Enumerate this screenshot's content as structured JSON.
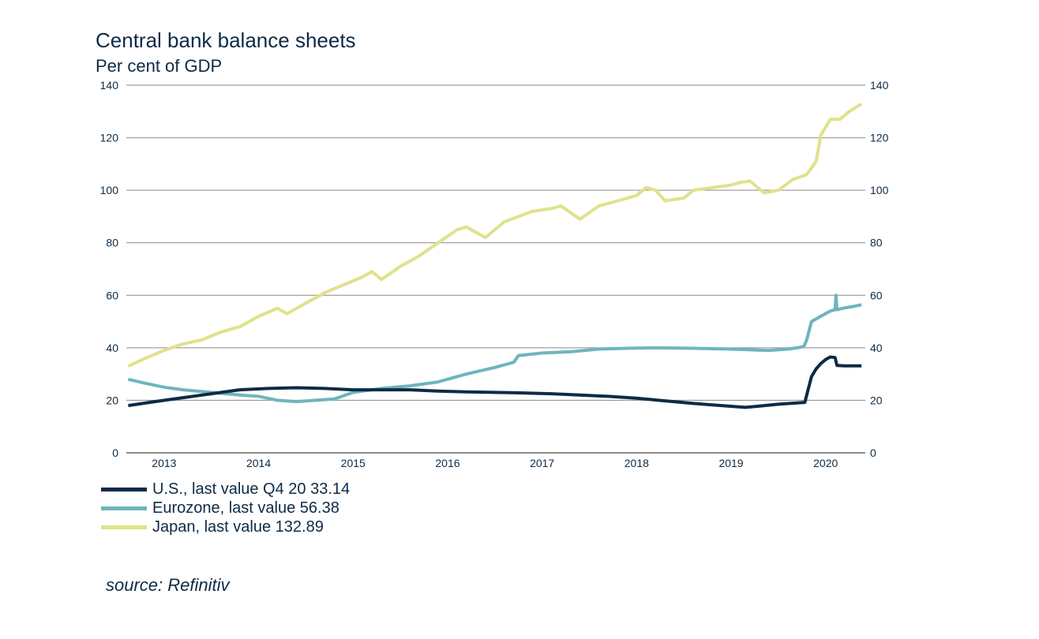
{
  "chart_data": {
    "type": "line",
    "title": "Central bank balance sheets",
    "subtitle": "Per cent of GDP",
    "ylim": [
      0,
      140
    ],
    "yticks": [
      0,
      20,
      40,
      60,
      80,
      100,
      120,
      140
    ],
    "xlim": [
      2012.6,
      2020.42
    ],
    "xticks": [
      2013,
      2014,
      2015,
      2016,
      2017,
      2018,
      2019,
      2020
    ],
    "grid": true,
    "legend_position": "bottom-left",
    "source": "source: Refinitiv",
    "series": [
      {
        "name": "U.S., last value Q4 20 33.14",
        "color": "#0d2b45",
        "x": [
          2012.62,
          2012.9,
          2013.2,
          2013.5,
          2013.8,
          2014.1,
          2014.4,
          2014.7,
          2015.0,
          2015.3,
          2015.6,
          2015.9,
          2016.2,
          2016.5,
          2016.8,
          2017.1,
          2017.4,
          2017.7,
          2018.0,
          2018.3,
          2018.6,
          2018.9,
          2019.15,
          2019.3,
          2019.5,
          2019.7,
          2019.78,
          2019.8,
          2019.85,
          2019.9,
          2019.95,
          2020.0,
          2020.05,
          2020.1,
          2020.12,
          2020.2,
          2020.3,
          2020.38
        ],
        "y": [
          18,
          19.5,
          21,
          22.5,
          24,
          24.5,
          24.8,
          24.5,
          24,
          24,
          24,
          23.5,
          23.2,
          23,
          22.8,
          22.5,
          22,
          21.5,
          20.8,
          19.8,
          18.8,
          18,
          17.3,
          17.8,
          18.5,
          19,
          19.2,
          22,
          29,
          32,
          34,
          35.5,
          36.5,
          36.3,
          33.3,
          33.1,
          33.1,
          33.14
        ]
      },
      {
        "name": "Eurozone, last value 56.38",
        "color": "#6eb5bd",
        "x": [
          2012.62,
          2012.8,
          2013.0,
          2013.2,
          2013.5,
          2013.8,
          2014.0,
          2014.2,
          2014.4,
          2014.6,
          2014.8,
          2015.0,
          2015.3,
          2015.6,
          2015.9,
          2016.2,
          2016.5,
          2016.7,
          2016.75,
          2017.0,
          2017.3,
          2017.6,
          2017.9,
          2018.2,
          2018.6,
          2019.0,
          2019.4,
          2019.6,
          2019.7,
          2019.77,
          2019.8,
          2019.85,
          2019.95,
          2020.05,
          2020.1,
          2020.11,
          2020.12,
          2020.2,
          2020.3,
          2020.38
        ],
        "y": [
          28,
          26.5,
          25,
          24,
          23,
          22,
          21.5,
          20,
          19.5,
          20,
          20.5,
          23,
          24.5,
          25.5,
          27,
          30,
          32.5,
          34.5,
          37,
          38,
          38.5,
          39.5,
          39.8,
          40,
          39.8,
          39.5,
          39,
          39.5,
          40,
          40.5,
          43,
          50,
          52,
          54,
          54.5,
          60,
          54.5,
          55.2,
          55.8,
          56.38
        ]
      },
      {
        "name": "Japan, last value 132.89",
        "color": "#dfe28b",
        "x": [
          2012.62,
          2012.8,
          2013.0,
          2013.2,
          2013.4,
          2013.6,
          2013.8,
          2014.0,
          2014.2,
          2014.3,
          2014.5,
          2014.7,
          2014.9,
          2015.1,
          2015.2,
          2015.3,
          2015.5,
          2015.7,
          2015.9,
          2016.1,
          2016.2,
          2016.4,
          2016.6,
          2016.9,
          2017.1,
          2017.2,
          2017.4,
          2017.6,
          2017.8,
          2018.0,
          2018.1,
          2018.2,
          2018.3,
          2018.5,
          2018.6,
          2018.8,
          2019.0,
          2019.1,
          2019.2,
          2019.35,
          2019.5,
          2019.65,
          2019.8,
          2019.9,
          2019.95,
          2020.05,
          2020.15,
          2020.25,
          2020.38
        ],
        "y": [
          33,
          36,
          39,
          41.5,
          43,
          46,
          48,
          52,
          55,
          53,
          57,
          61,
          64,
          67,
          69,
          66,
          71,
          75,
          80,
          85,
          86,
          82,
          88,
          92,
          93,
          94,
          89,
          94,
          96,
          98,
          101,
          100,
          96,
          97,
          100,
          101,
          102,
          103,
          103.5,
          99,
          100,
          104,
          106,
          111,
          121,
          127,
          127,
          130,
          132.89
        ]
      }
    ]
  }
}
